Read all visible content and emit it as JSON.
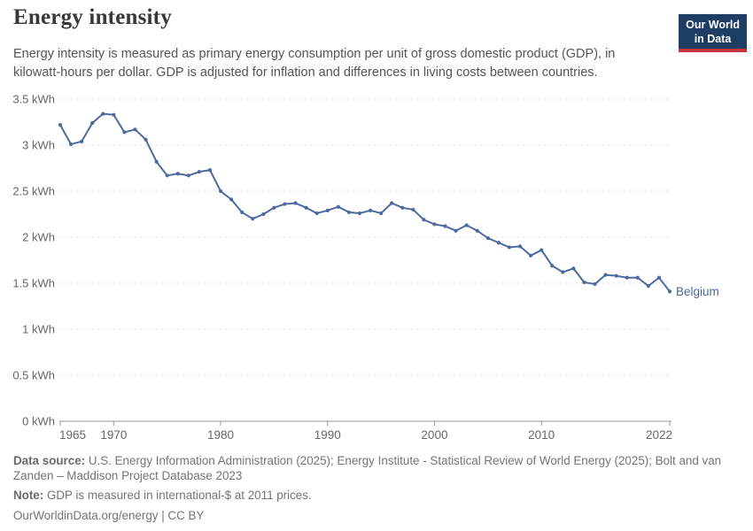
{
  "header": {
    "title": "Energy intensity",
    "subtitle": "Energy intensity is measured as primary energy consumption per unit of gross domestic product (GDP), in kilowatt-hours per dollar. GDP is adjusted for inflation and differences in living costs between countries."
  },
  "logo": {
    "line1": "Our World",
    "line2": "in Data",
    "bg_color": "#1d3d63",
    "bar_color": "#c5353b"
  },
  "chart_data": {
    "type": "line",
    "title": "Energy intensity",
    "unit": "kWh",
    "xlabel": "",
    "xlim": [
      1965,
      2022
    ],
    "ylim": [
      0,
      3.5
    ],
    "grid": "horizontal-dashed",
    "legend": "end-of-line-label",
    "x_ticks": [
      1965,
      1970,
      1980,
      1990,
      2000,
      2010,
      2022
    ],
    "y_ticks": [
      0,
      0.5,
      1,
      1.5,
      2,
      2.5,
      3,
      3.5
    ],
    "y_tick_labels": [
      "0 kWh",
      "0.5 kWh",
      "1 kWh",
      "1.5 kWh",
      "2 kWh",
      "2.5 kWh",
      "3 kWh",
      "3.5 kWh"
    ],
    "x": [
      1965,
      1966,
      1967,
      1968,
      1969,
      1970,
      1971,
      1972,
      1973,
      1974,
      1975,
      1976,
      1977,
      1978,
      1979,
      1980,
      1981,
      1982,
      1983,
      1984,
      1985,
      1986,
      1987,
      1988,
      1989,
      1990,
      1991,
      1992,
      1993,
      1994,
      1995,
      1996,
      1997,
      1998,
      1999,
      2000,
      2001,
      2002,
      2003,
      2004,
      2005,
      2006,
      2007,
      2008,
      2009,
      2010,
      2011,
      2012,
      2013,
      2014,
      2015,
      2016,
      2017,
      2018,
      2019,
      2020,
      2021,
      2022
    ],
    "series": [
      {
        "name": "Belgium",
        "color": "#4C6A9F",
        "values": [
          3.22,
          3.01,
          3.04,
          3.24,
          3.34,
          3.33,
          3.14,
          3.17,
          3.06,
          2.82,
          2.67,
          2.69,
          2.67,
          2.71,
          2.73,
          2.5,
          2.41,
          2.27,
          2.2,
          2.25,
          2.32,
          2.36,
          2.37,
          2.32,
          2.26,
          2.29,
          2.33,
          2.27,
          2.26,
          2.29,
          2.26,
          2.37,
          2.32,
          2.3,
          2.19,
          2.14,
          2.12,
          2.07,
          2.13,
          2.07,
          1.99,
          1.94,
          1.89,
          1.9,
          1.8,
          1.86,
          1.69,
          1.62,
          1.66,
          1.51,
          1.49,
          1.59,
          1.58,
          1.56,
          1.56,
          1.47,
          1.56,
          1.41
        ]
      }
    ]
  },
  "footer": {
    "source_label": "Data source:",
    "source_text": "U.S. Energy Information Administration (2025); Energy Institute - Statistical Review of World Energy (2025); Bolt and van Zanden – Maddison Project Database 2023",
    "note_label": "Note:",
    "note_text": "GDP is measured in international-$ at 2011 prices.",
    "link": "OurWorldinData.org/energy | CC BY"
  },
  "colors": {
    "line": "#4C6A9F",
    "title": "#383838",
    "subtitle": "#555555",
    "axis_text": "#666666",
    "gridline": "#dcdcdc",
    "axis_line": "#999999",
    "footer_text": "#757575"
  }
}
